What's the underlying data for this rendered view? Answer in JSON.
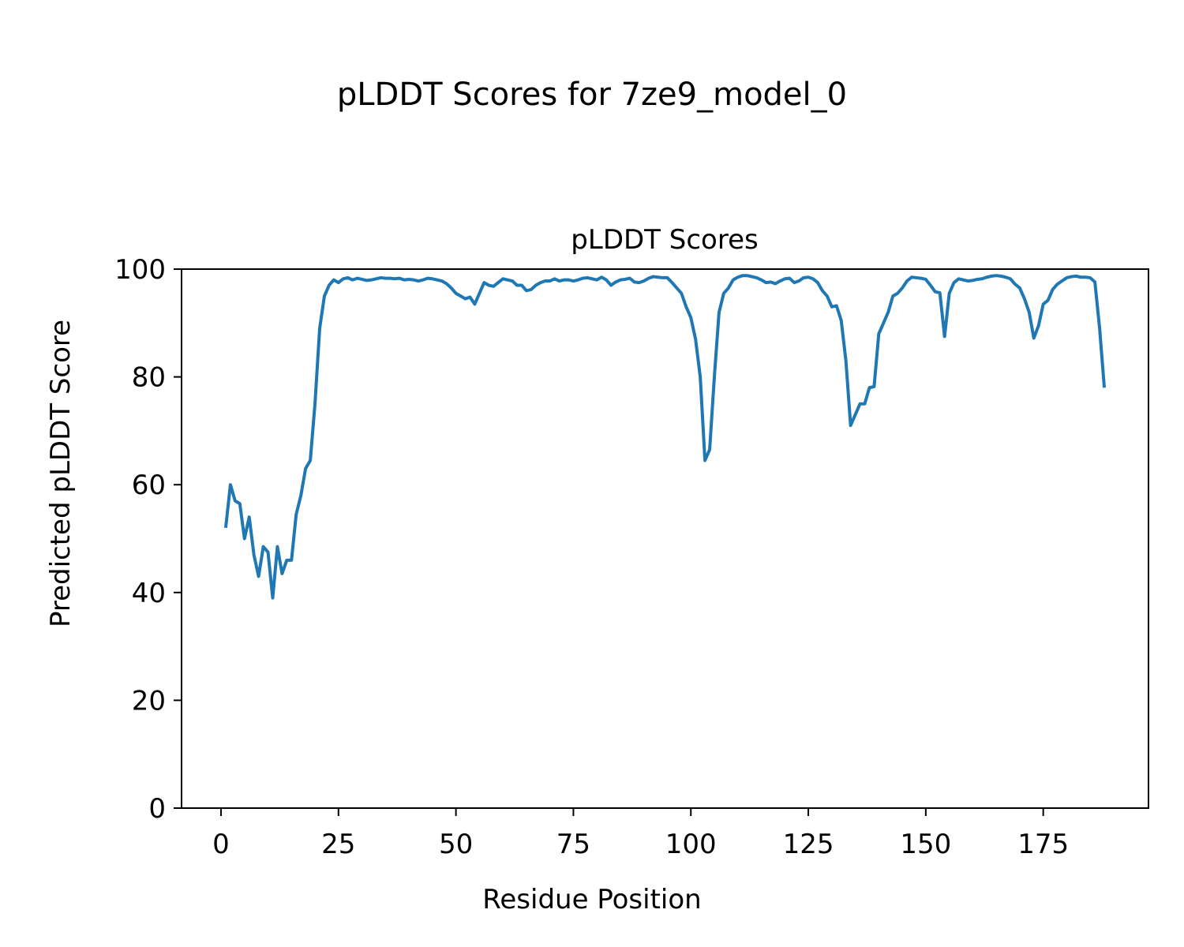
{
  "figure": {
    "title": "pLDDT Scores for 7ze9_model_0"
  },
  "chart_data": {
    "type": "line",
    "title": "pLDDT Scores",
    "xlabel": "Residue Position",
    "ylabel": "Predicted pLDDT Score",
    "xlim": [
      -8.4,
      197.4
    ],
    "ylim": [
      0,
      100
    ],
    "xticks": [
      "0",
      "25",
      "50",
      "75",
      "100",
      "125",
      "150",
      "175"
    ],
    "yticks": [
      "0",
      "20",
      "40",
      "60",
      "80",
      "100"
    ],
    "grid": false,
    "line_color": "#1f77b4",
    "series": [
      {
        "x": [
          1,
          2,
          3,
          4,
          5,
          6,
          7,
          8,
          9,
          10,
          11,
          12,
          13,
          14,
          15,
          16,
          17,
          18,
          19,
          20,
          21,
          22,
          23,
          24,
          25,
          26,
          27,
          28,
          29,
          30,
          31,
          32,
          33,
          34,
          35,
          36,
          37,
          38,
          39,
          40,
          41,
          42,
          43,
          44,
          45,
          46,
          47,
          48,
          49,
          50,
          51,
          52,
          53,
          54,
          55,
          56,
          57,
          58,
          59,
          60,
          61,
          62,
          63,
          64,
          65,
          66,
          67,
          68,
          69,
          70,
          71,
          72,
          73,
          74,
          75,
          76,
          77,
          78,
          79,
          80,
          81,
          82,
          83,
          84,
          85,
          86,
          87,
          88,
          89,
          90,
          91,
          92,
          93,
          94,
          95,
          96,
          97,
          98,
          99,
          100,
          101,
          102,
          103,
          104,
          105,
          106,
          107,
          108,
          109,
          110,
          111,
          112,
          113,
          114,
          115,
          116,
          117,
          118,
          119,
          120,
          121,
          122,
          123,
          124,
          125,
          126,
          127,
          128,
          129,
          130,
          131,
          132,
          133,
          134,
          135,
          136,
          137,
          138,
          139,
          140,
          141,
          142,
          143,
          144,
          145,
          146,
          147,
          148,
          149,
          150,
          151,
          152,
          153,
          154,
          155,
          156,
          157,
          158,
          159,
          160,
          161,
          162,
          163,
          164,
          165,
          166,
          167,
          168,
          169,
          170,
          171,
          172,
          173,
          174,
          175,
          176,
          177,
          178,
          179,
          180,
          181,
          182,
          183,
          184,
          185,
          186,
          187,
          188
        ],
        "y": [
          52,
          60,
          57,
          56.5,
          50,
          54,
          47,
          43,
          48.5,
          47.5,
          39,
          48.5,
          43.5,
          46,
          46,
          54.5,
          58,
          63,
          64.5,
          75,
          89,
          95,
          97,
          98,
          97.5,
          98.2,
          98.4,
          98,
          98.3,
          98.1,
          97.9,
          98,
          98.2,
          98.4,
          98.3,
          98.3,
          98.2,
          98.3,
          98,
          98.1,
          98,
          97.8,
          98,
          98.3,
          98.2,
          98,
          97.8,
          97.3,
          96.5,
          95.5,
          95,
          94.5,
          94.8,
          93.5,
          95.5,
          97.5,
          97,
          96.8,
          97.5,
          98.2,
          98,
          97.8,
          97,
          97,
          96,
          96.2,
          97,
          97.5,
          97.8,
          97.8,
          98.2,
          97.8,
          98,
          98,
          97.8,
          98,
          98.3,
          98.4,
          98.2,
          98,
          98.5,
          98,
          97,
          97.6,
          98,
          98.1,
          98.3,
          97.6,
          97.5,
          97.8,
          98.3,
          98.6,
          98.5,
          98.4,
          98.4,
          97.5,
          96.5,
          95.5,
          93,
          91,
          87,
          80,
          64.5,
          66.5,
          80,
          92,
          95.5,
          96.5,
          98,
          98.5,
          98.8,
          98.8,
          98.6,
          98.4,
          98,
          97.5,
          97.6,
          97.3,
          97.8,
          98.2,
          98.3,
          97.5,
          97.8,
          98.4,
          98.5,
          98.2,
          97.5,
          96,
          95,
          93,
          93.2,
          90.5,
          83,
          71,
          73,
          75,
          75,
          78,
          78.2,
          88,
          90,
          92,
          95,
          95.5,
          96.5,
          97.8,
          98.5,
          98.4,
          98.3,
          98.1,
          97,
          95.8,
          95.6,
          87.5,
          95.5,
          97.5,
          98.2,
          98.0,
          97.8,
          97.9,
          98.1,
          98.2,
          98.5,
          98.7,
          98.8,
          98.7,
          98.5,
          98.2,
          97.2,
          96.5,
          94.5,
          92,
          87.2,
          89.5,
          93.5,
          94.2,
          96.2,
          97.2,
          97.8,
          98.4,
          98.6,
          98.7,
          98.5,
          98.5,
          98.4,
          97.6,
          89,
          78
        ]
      }
    ]
  }
}
